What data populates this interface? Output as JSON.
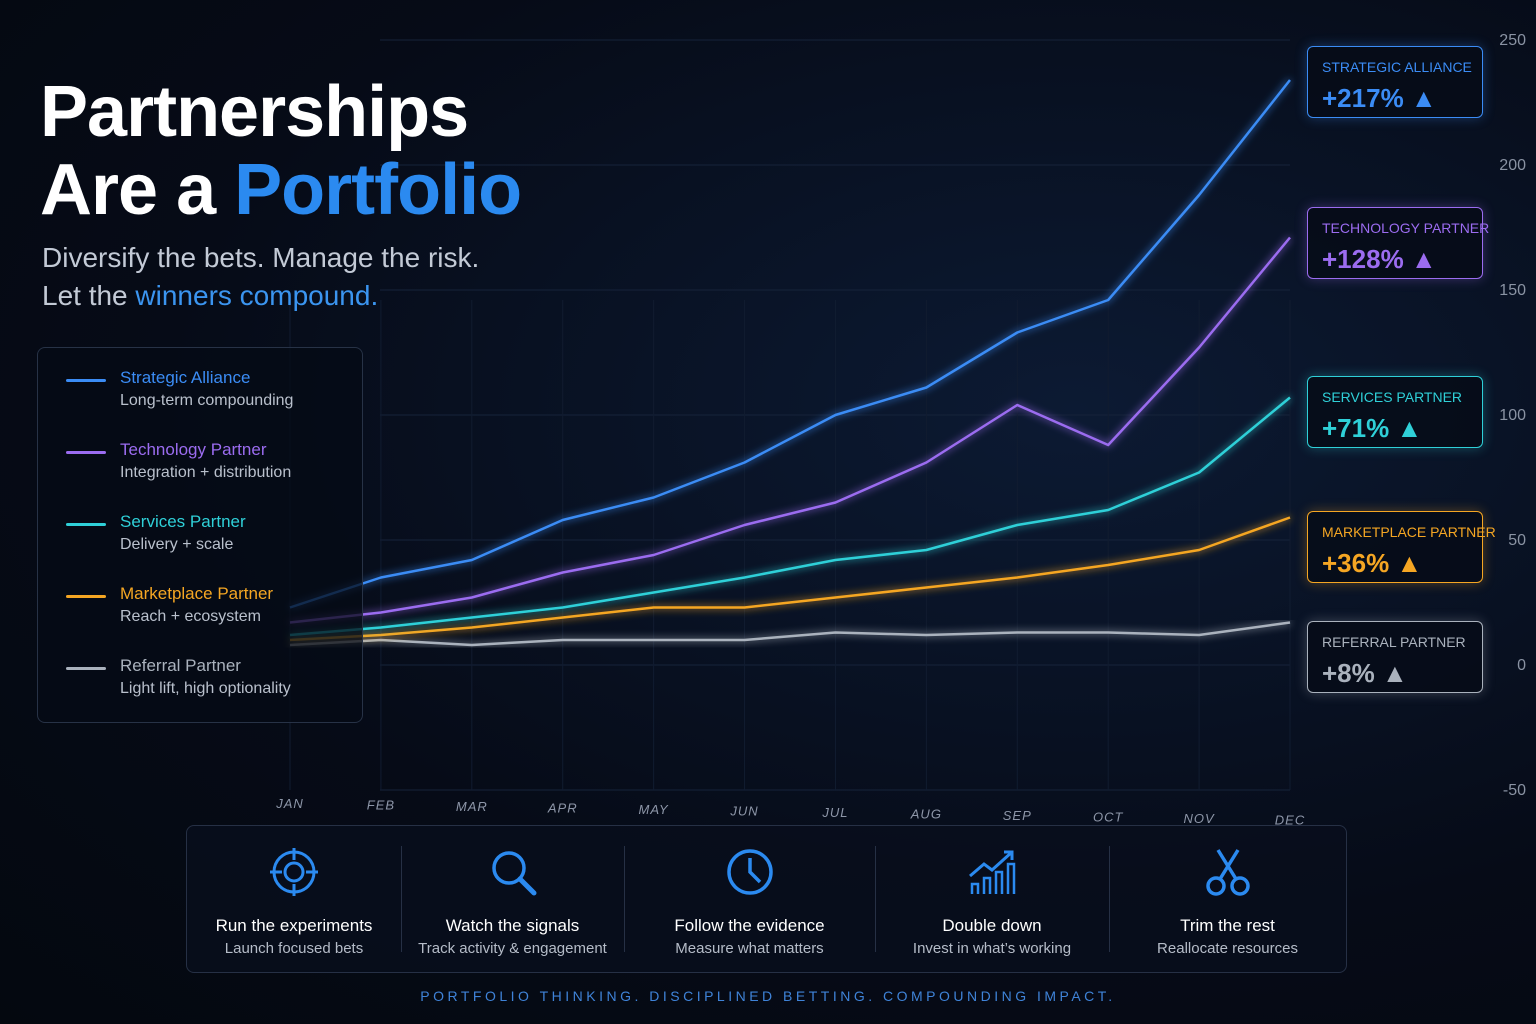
{
  "header": {
    "title_line1": "Partnerships",
    "title_lead": "Are a",
    "title_highlight": "Portfolio",
    "subtitle_line1": "Diversify the bets. Manage the risk.",
    "subtitle_lead": "Let the",
    "subtitle_highlight": "winners compound."
  },
  "chart_data": {
    "type": "line",
    "categories": [
      "JAN",
      "FEB",
      "MAR",
      "APR",
      "MAY",
      "JUN",
      "JUL",
      "AUG",
      "SEP",
      "OCT",
      "NOV",
      "DEC"
    ],
    "ylim": [
      -50,
      250
    ],
    "yticks": [
      -50,
      0,
      50,
      100,
      150,
      200,
      250
    ],
    "grid": true,
    "series": [
      {
        "name": "Strategic Alliance",
        "description": "Long-term compounding",
        "callout_label": "STRATEGIC ALLIANCE",
        "callout_value": "+217% ▲",
        "color": "#3b8cf5",
        "values": [
          23,
          35,
          42,
          58,
          67,
          81,
          100,
          111,
          133,
          146,
          188,
          234
        ]
      },
      {
        "name": "Technology Partner",
        "description": "Integration + distribution",
        "callout_label": "TECHNOLOGY PARTNER",
        "callout_value": "+128% ▲",
        "color": "#9b6cf0",
        "values": [
          17,
          21,
          27,
          37,
          44,
          56,
          65,
          81,
          104,
          88,
          127,
          171
        ]
      },
      {
        "name": "Services Partner",
        "description": "Delivery + scale",
        "callout_label": "SERVICES PARTNER",
        "callout_value": "+71% ▲",
        "color": "#2fd0d8",
        "values": [
          12,
          15,
          19,
          23,
          29,
          35,
          42,
          46,
          56,
          62,
          77,
          107
        ]
      },
      {
        "name": "Marketplace Partner",
        "description": "Reach + ecosystem",
        "callout_label": "MARKETPLACE PARTNER",
        "callout_value": "+36% ▲",
        "color": "#f5a623",
        "values": [
          10,
          12,
          15,
          19,
          23,
          23,
          27,
          31,
          35,
          40,
          46,
          59
        ]
      },
      {
        "name": "Referral Partner",
        "description": "Light lift, high optionality",
        "callout_label": "REFERRAL PARTNER",
        "callout_value": "+8% ▲",
        "color": "#aab2bd",
        "values": [
          8,
          10,
          8,
          10,
          10,
          10,
          13,
          12,
          13,
          13,
          12,
          17
        ]
      }
    ]
  },
  "features": [
    {
      "title": "Run the experiments",
      "subtitle": "Launch focused bets"
    },
    {
      "title": "Watch the signals",
      "subtitle": "Track activity & engagement"
    },
    {
      "title": "Follow the evidence",
      "subtitle": "Measure what matters"
    },
    {
      "title": "Double down",
      "subtitle": "Invest in what’s working"
    },
    {
      "title": "Trim the rest",
      "subtitle": "Reallocate resources"
    }
  ],
  "tagline": "PORTFOLIO THINKING. DISCIPLINED BETTING. COMPOUNDING IMPACT."
}
